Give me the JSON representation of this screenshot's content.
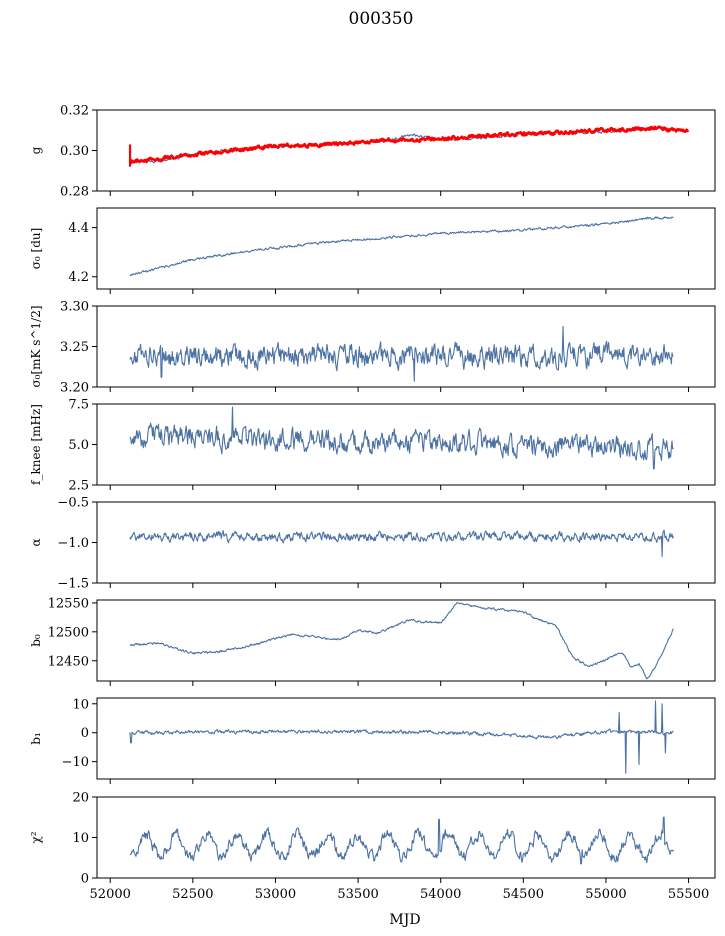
{
  "title": "000350",
  "xlabel": "MJD",
  "colors": {
    "series": "#4c72a4",
    "fit": "#ff0000",
    "axis": "#000000"
  },
  "chart_data": {
    "type": "line",
    "title": "000350",
    "xlabel": "MJD",
    "xlim": [
      51920,
      55660
    ],
    "x_ticks": [
      52000,
      52500,
      53000,
      53500,
      54000,
      54500,
      55000,
      55500
    ],
    "x_tick_labels": [
      "52000",
      "52500",
      "53000",
      "53500",
      "54000",
      "54500",
      "55000",
      "55500"
    ],
    "data_span": [
      52120,
      55410
    ],
    "panels": [
      {
        "key": "g",
        "ylabel": "g",
        "ylim": [
          0.28,
          0.32
        ],
        "yticks": [
          0.28,
          0.3,
          0.32
        ],
        "ytick_labels": [
          "0.28",
          "0.30",
          "0.32"
        ],
        "series": [
          {
            "name": "g",
            "color": "#4c72a4",
            "x": [
              52120,
              52300,
              52500,
              52700,
              53000,
              53300,
              53500,
              53700,
              53800,
              54000,
              54200,
              54500,
              54800,
              55000,
              55300,
              55410
            ],
            "values": [
              0.294,
              0.295,
              0.298,
              0.3,
              0.302,
              0.303,
              0.304,
              0.305,
              0.308,
              0.305,
              0.306,
              0.308,
              0.309,
              0.309,
              0.311,
              0.31
            ],
            "noise": 0.0006,
            "seed": 1
          },
          {
            "name": "fit",
            "color": "#ff0000",
            "x": [
              52120,
              52300,
              52500,
              52700,
              53000,
              53300,
              53500,
              53700,
              54000,
              54200,
              54500,
              54800,
              55000,
              55300,
              55410,
              55500
            ],
            "values": [
              0.295,
              0.296,
              0.298,
              0.3,
              0.302,
              0.303,
              0.304,
              0.305,
              0.306,
              0.307,
              0.308,
              0.309,
              0.31,
              0.311,
              0.31,
              0.31
            ],
            "noise": 0.0007,
            "seed": 2,
            "bold": true
          }
        ]
      },
      {
        "key": "sigma0",
        "ylabel": "σ₀ [du]",
        "ylim": [
          4.15,
          4.48
        ],
        "yticks": [
          4.2,
          4.4
        ],
        "ytick_labels": [
          "4.2",
          "4.4"
        ],
        "series": [
          {
            "name": "sigma0 [du]",
            "color": "#4c72a4",
            "x": [
              52120,
              52500,
              52900,
              53300,
              53700,
              54100,
              54500,
              54900,
              55300,
              55410
            ],
            "values": [
              4.205,
              4.27,
              4.31,
              4.34,
              4.36,
              4.38,
              4.39,
              4.41,
              4.44,
              4.44
            ],
            "noise": 0.004,
            "seed": 3
          }
        ]
      },
      {
        "key": "sigma0_mk",
        "ylabel": "σ₀[mK s^1/2]",
        "ylim": [
          3.2,
          3.3
        ],
        "yticks": [
          3.2,
          3.25,
          3.3
        ],
        "ytick_labels": [
          "3.20",
          "3.25",
          "3.30"
        ],
        "series": [
          {
            "name": "sigma0 [mK s^1/2]",
            "color": "#4c72a4",
            "x": [
              52120,
              55410
            ],
            "values": [
              3.238,
              3.238
            ],
            "noise": 0.011,
            "seed": 4,
            "spikes": [
              [
                53840,
                3.207
              ],
              [
                54740,
                3.275
              ],
              [
                52310,
                3.212
              ]
            ]
          }
        ]
      },
      {
        "key": "fknee",
        "ylabel": "f_knee [mHz]",
        "ylim": [
          2.5,
          7.5
        ],
        "yticks": [
          2.5,
          5.0,
          7.5
        ],
        "ytick_labels": [
          "2.5",
          "5.0",
          "7.5"
        ],
        "series": [
          {
            "name": "f_knee [mHz]",
            "color": "#4c72a4",
            "x": [
              52120,
              52700,
              53300,
              54000,
              54700,
              55410
            ],
            "values": [
              5.6,
              5.4,
              5.2,
              5.1,
              4.9,
              4.7
            ],
            "noise": 0.55,
            "seed": 5,
            "spikes": [
              [
                52740,
                7.3
              ],
              [
                55290,
                3.5
              ]
            ]
          }
        ]
      },
      {
        "key": "alpha",
        "ylabel": "α",
        "ylim": [
          -1.5,
          -0.5
        ],
        "yticks": [
          -1.5,
          -1.0,
          -0.5
        ],
        "ytick_labels": [
          "−1.5",
          "−1.0",
          "−0.5"
        ],
        "series": [
          {
            "name": "alpha",
            "color": "#4c72a4",
            "x": [
              52120,
              55410
            ],
            "values": [
              -0.93,
              -0.93
            ],
            "noise": 0.045,
            "seed": 6,
            "spikes": [
              [
                55340,
                -1.17
              ]
            ]
          }
        ]
      },
      {
        "key": "b0",
        "ylabel": "b₀",
        "ylim": [
          12415,
          12555
        ],
        "yticks": [
          12450,
          12500,
          12550
        ],
        "ytick_labels": [
          "12450",
          "12500",
          "12550"
        ],
        "series": [
          {
            "name": "b0",
            "color": "#4c72a4",
            "x": [
              52120,
              52300,
              52500,
              52650,
              52900,
              53100,
              53400,
              53500,
              53620,
              53800,
              54000,
              54100,
              54300,
              54500,
              54600,
              54700,
              54800,
              54900,
              55000,
              55050,
              55100,
              55150,
              55200,
              55250,
              55300,
              55350,
              55410
            ],
            "values": [
              12478,
              12480,
              12463,
              12465,
              12480,
              12495,
              12487,
              12503,
              12498,
              12520,
              12515,
              12550,
              12540,
              12535,
              12520,
              12510,
              12455,
              12440,
              12452,
              12460,
              12465,
              12440,
              12445,
              12418,
              12440,
              12470,
              12505
            ],
            "noise": 1.6,
            "seed": 7
          }
        ]
      },
      {
        "key": "b1",
        "ylabel": "b₁",
        "ylim": [
          -16,
          12
        ],
        "yticks": [
          -10,
          0,
          10
        ],
        "ytick_labels": [
          "−10",
          "0",
          "10"
        ],
        "series": [
          {
            "name": "b1",
            "color": "#4c72a4",
            "x": [
              52120,
              53000,
              54000,
              54700,
              55000,
              55410
            ],
            "values": [
              0,
              0.5,
              0.3,
              -1.5,
              0.5,
              0
            ],
            "noise": 0.5,
            "seed": 8,
            "spikes": [
              [
                52125,
                -3.5
              ],
              [
                55080,
                7
              ],
              [
                55120,
                -14
              ],
              [
                55200,
                -11
              ],
              [
                55300,
                11
              ],
              [
                55340,
                10
              ],
              [
                55360,
                -7
              ]
            ]
          }
        ]
      },
      {
        "key": "chi2",
        "ylabel": "χ²",
        "ylim": [
          0,
          20
        ],
        "yticks": [
          0,
          10,
          20
        ],
        "ytick_labels": [
          "0",
          "10",
          "20"
        ],
        "series": [
          {
            "name": "chi2",
            "color": "#4c72a4",
            "x": [
              52120,
              55410
            ],
            "values": [
              8,
              8
            ],
            "noise": 1.2,
            "seed": 9,
            "periodic": {
              "amplitude": 2.8,
              "period": 183,
              "phase": 52170
            },
            "spikes": [
              [
                53990,
                14.5
              ],
              [
                54850,
                3.5
              ],
              [
                55350,
                15
              ]
            ]
          }
        ]
      }
    ]
  }
}
